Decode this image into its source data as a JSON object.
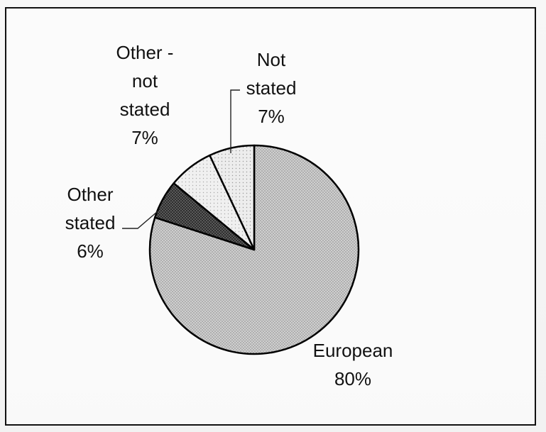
{
  "chart_data": {
    "type": "pie",
    "title": "",
    "slices": [
      {
        "label": "European",
        "label_lines": [
          "European"
        ],
        "value": 80,
        "value_text": "80%",
        "color": "#b9b9b9"
      },
      {
        "label": "Other stated",
        "label_lines": [
          "Other",
          "stated"
        ],
        "value": 6,
        "value_text": "6%",
        "color": "#4a4a4a"
      },
      {
        "label": "Other - not stated",
        "label_lines": [
          "Other -",
          "not",
          "stated"
        ],
        "value": 7,
        "value_text": "7%",
        "color": "#ececec"
      },
      {
        "label": "Not stated",
        "label_lines": [
          "Not",
          "stated"
        ],
        "value": 7,
        "value_text": "7%",
        "color": "#e2e2e2"
      }
    ],
    "legend": "none"
  }
}
